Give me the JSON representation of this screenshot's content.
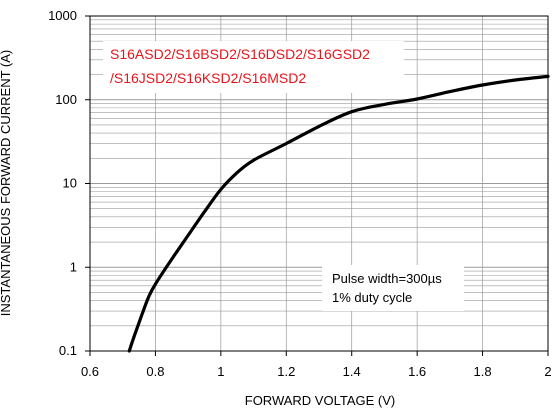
{
  "chart_data": {
    "type": "line",
    "title": "",
    "xlabel": "FORWARD VOLTAGE (V)",
    "ylabel": "INSTANTANEOUS FORWARD CURRENT (A)",
    "x_scale": "linear",
    "y_scale": "log",
    "xlim": [
      0.6,
      2.0
    ],
    "ylim": [
      0.1,
      1000
    ],
    "grid": true,
    "x_ticks": [
      0.6,
      0.8,
      1.0,
      1.2,
      1.4,
      1.6,
      1.8,
      2.0
    ],
    "x_tick_labels": [
      "0.6",
      "0.8",
      "1",
      "1.2",
      "1.4",
      "1.6",
      "1.8",
      "2"
    ],
    "y_ticks": [
      0.1,
      1,
      10,
      100,
      1000
    ],
    "y_tick_labels": [
      "0.1",
      "1",
      "10",
      "100",
      "1000"
    ],
    "annotations": {
      "part_numbers_line1": "S16ASD2/S16BSD2/S16DSD2/S16GSD2",
      "part_numbers_line2": "/S16JSD2/S16KSD2/S16MSD2",
      "pulse_width": "Pulse width=300µs",
      "duty_cycle": "1% duty cycle"
    },
    "colors": {
      "curve": "#000000",
      "part_numbers": "#e8141b",
      "grid": "#9a9a9a"
    },
    "series": [
      {
        "x": [
          0.72,
          0.74,
          0.76,
          0.78,
          0.8,
          0.85,
          0.9,
          0.95,
          1.0,
          1.05,
          1.1,
          1.2,
          1.3,
          1.4,
          1.5,
          1.6,
          1.7,
          1.8,
          1.9,
          2.0
        ],
        "y": [
          0.1,
          0.17,
          0.28,
          0.45,
          0.63,
          1.25,
          2.4,
          4.6,
          8.5,
          13.5,
          19,
          30,
          48,
          72,
          88,
          102,
          125,
          150,
          172,
          190
        ]
      }
    ]
  }
}
